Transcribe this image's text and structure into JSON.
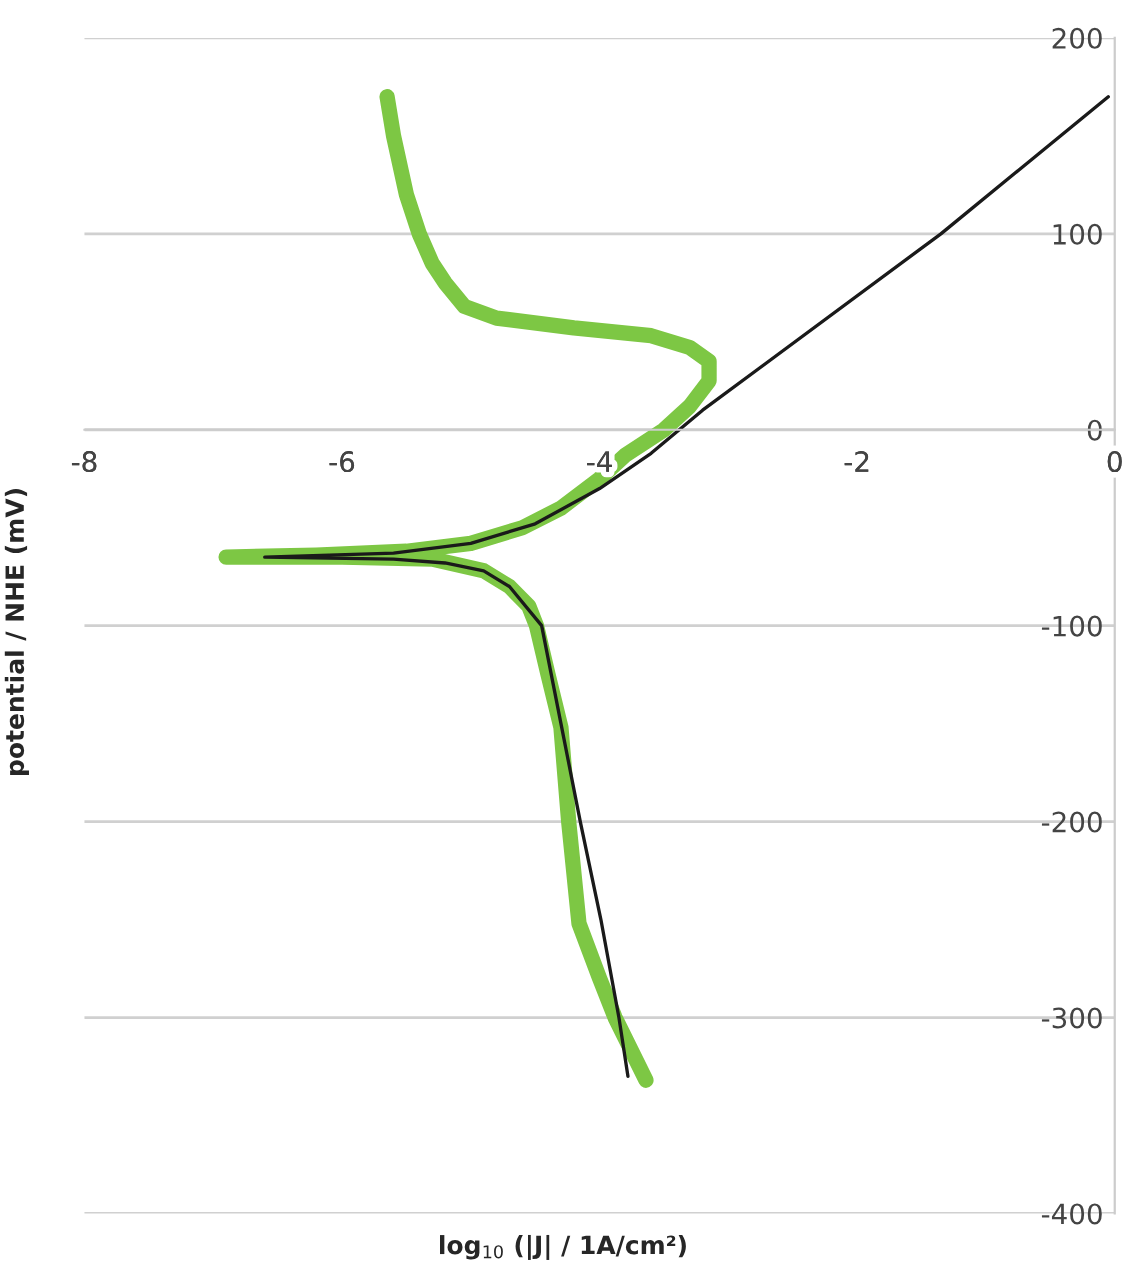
{
  "chart_data": {
    "type": "line",
    "xlabel": "log$_{10}$ (|J| / 1A/cm²)",
    "ylabel": "potential / NHE (mV)",
    "xlim": [
      -8,
      0
    ],
    "xticks": [
      -8,
      -6,
      -4,
      -2,
      0
    ],
    "ylim": [
      -400,
      200
    ],
    "yticks": [
      -400,
      -300,
      -200,
      -100,
      0,
      100,
      200
    ],
    "grid": "y",
    "legend": false,
    "marker": "none",
    "line_style": "solid",
    "series": [
      {
        "color": "#7dc744",
        "x": [
          -5.65,
          -5.6,
          -5.5,
          -5.4,
          -5.3,
          -5.2,
          -5.05,
          -4.8,
          -4.2,
          -3.6,
          -3.3,
          -3.15,
          -3.15,
          -3.3,
          -3.5,
          -3.8,
          -4.0,
          -4.3,
          -4.6,
          -5.0,
          -5.5,
          -6.2,
          -6.9,
          -6.0,
          -5.3,
          -4.9,
          -4.7,
          -4.55,
          -4.49,
          -4.4,
          -4.3,
          -4.24,
          -4.16,
          -4.0,
          -3.88,
          -3.64
        ],
        "values": [
          170,
          150,
          120,
          100,
          85,
          75,
          63,
          57,
          52,
          48,
          42,
          35,
          25,
          12,
          0,
          -13,
          -25,
          -40,
          -50,
          -58,
          -62,
          -64,
          -65,
          -65,
          -66,
          -72,
          -80,
          -90,
          -100,
          -125,
          -152,
          -200,
          -252,
          -280,
          -300,
          -332
        ]
      },
      {
        "color": "#1a1a1a",
        "x": [
          -0.05,
          -1.35,
          -3.2,
          -3.6,
          -4.0,
          -4.5,
          -5.0,
          -5.6,
          -6.6,
          -5.6,
          -5.2,
          -4.9,
          -4.7,
          -4.45,
          -4.3,
          -4.15,
          -3.99,
          -3.85,
          -3.78
        ],
        "values": [
          170,
          100,
          10,
          -12,
          -30,
          -48,
          -58,
          -63,
          -65,
          -66,
          -68,
          -72,
          -80,
          -100,
          -150,
          -200,
          -250,
          -300,
          -330
        ]
      }
    ]
  }
}
